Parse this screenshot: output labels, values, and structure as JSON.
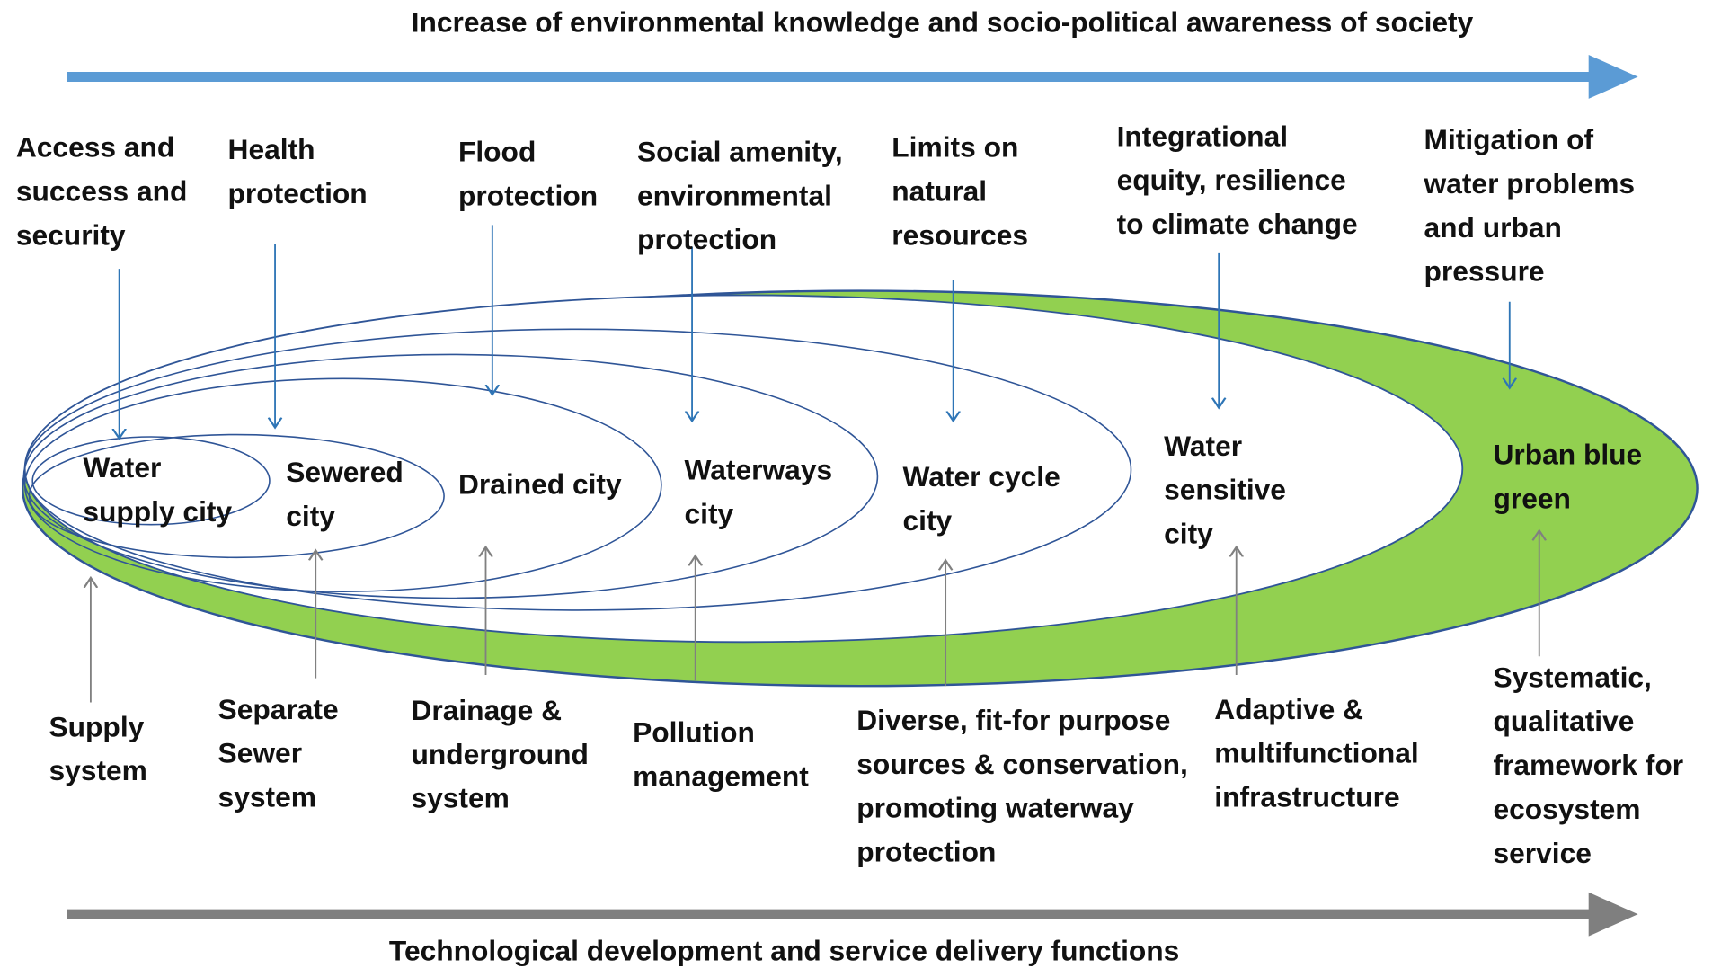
{
  "header": {
    "top_arrow_label": "Increase of environmental knowledge and socio-political awareness  of society",
    "bottom_arrow_label": "Technological development and service delivery  functions"
  },
  "drivers": [
    [
      "Access and",
      "success and",
      "security"
    ],
    [
      "Health",
      "protection"
    ],
    [
      "Flood",
      "protection"
    ],
    [
      "Social amenity,",
      "environmental",
      "protection"
    ],
    [
      "Limits on",
      "natural",
      "resources"
    ],
    [
      "Integrational",
      "equity, resilience",
      "to climate change"
    ],
    [
      "Mitigation of",
      "water problems",
      "and urban",
      "pressure"
    ]
  ],
  "cities": [
    [
      "Water",
      "supply city"
    ],
    [
      "Sewered",
      "city"
    ],
    [
      "Drained city"
    ],
    [
      "Waterways",
      "city"
    ],
    [
      "Water cycle",
      "city"
    ],
    [
      "Water",
      "sensitive",
      "city"
    ],
    [
      "Urban blue",
      "green"
    ]
  ],
  "functions": [
    [
      "Supply",
      "system"
    ],
    [
      "Separate",
      "Sewer",
      "system"
    ],
    [
      "Drainage &",
      "underground",
      "system"
    ],
    [
      "Pollution",
      "management"
    ],
    [
      "Diverse, fit-for purpose",
      "sources & conservation,",
      "promoting waterway",
      "protection"
    ],
    [
      "Adaptive &",
      "multifunctional",
      "infrastructure"
    ],
    [
      "Systematic,",
      "qualitative",
      "framework for",
      "ecosystem",
      "service"
    ]
  ]
}
